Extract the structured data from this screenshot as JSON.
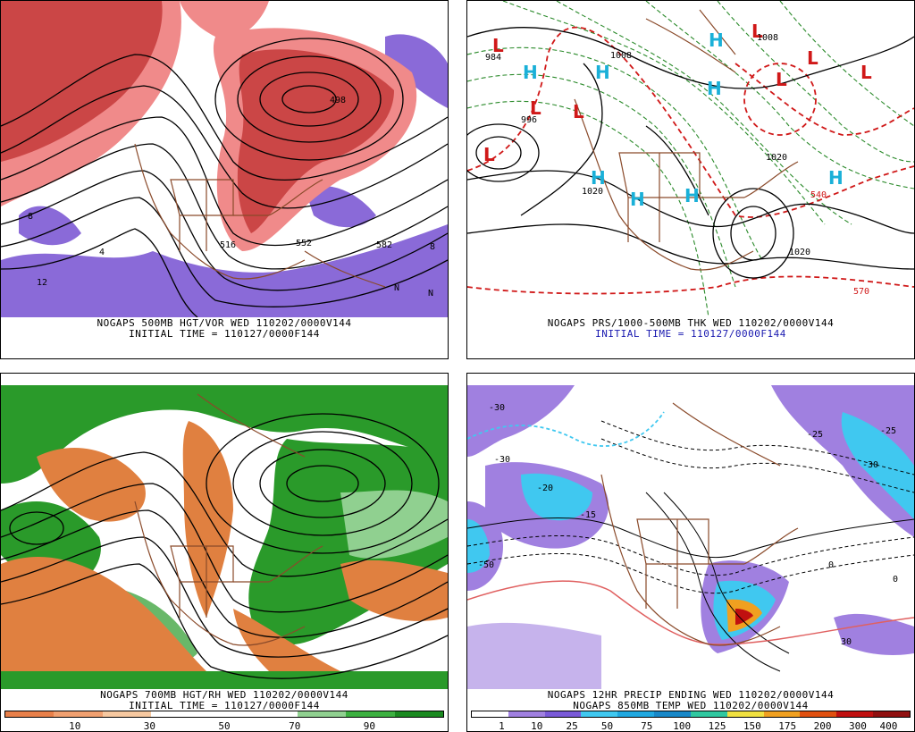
{
  "panels": {
    "top_left": {
      "title_line1": "NOGAPS 500MB HGT/VOR WED 110202/0000V144",
      "title_line2": "INITIAL TIME = 110127/0000F144",
      "contour_labels": [
        "498",
        "516",
        "552",
        "582",
        "8",
        "4",
        "8",
        "12",
        "N",
        "N"
      ]
    },
    "top_right": {
      "title_line1": "NOGAPS PRS/1000-500MB THK WED 110202/0000V144",
      "title_line2": "INITIAL TIME = 110127/0000F144",
      "pressure_labels": [
        "1020",
        "1020",
        "1020",
        "1008",
        "996",
        "984",
        "1008",
        "540",
        "570"
      ],
      "low_label": "L",
      "high_label": "H"
    },
    "bottom_left": {
      "title_line1": "NOGAPS 700MB HGT/RH WED 110202/0000V144",
      "title_line2": "INITIAL TIME = 110127/0000F144",
      "colorbar": {
        "ticks": [
          "10",
          "30",
          "50",
          "70",
          "90"
        ],
        "colors": [
          "#e8804a",
          "#f0a070",
          "#f6c8a0",
          "#ffffff",
          "#ffffff",
          "#ffffff",
          "#90d090",
          "#3cb040",
          "#1a8a20"
        ]
      }
    },
    "bottom_right": {
      "title_line1": "NOGAPS 12HR PRECIP ENDING WED 110202/0000V144",
      "title_line2": "NOGAPS 850MB TEMP WED 110202/0000V144",
      "colorbar": {
        "ticks": [
          "1",
          "10",
          "25",
          "50",
          "75",
          "100",
          "125",
          "150",
          "175",
          "200",
          "300",
          "400"
        ],
        "colors": [
          "#ffffff",
          "#a080e0",
          "#7a5ad8",
          "#40c8f0",
          "#20a8e0",
          "#1888c8",
          "#30c8a0",
          "#f0e040",
          "#f0a020",
          "#e05010",
          "#c01010",
          "#901010"
        ]
      },
      "temp_labels": [
        "0",
        "-30",
        "-15",
        "-20",
        "-50",
        "-30",
        "-25",
        "0",
        "30",
        "-30",
        "-25"
      ]
    }
  },
  "colors": {
    "vorticity_pos": "#c43a3a",
    "vorticity_light": "#f08a8a",
    "vorticity_neg": "#8a6ad8",
    "coast": "#8a4a2a",
    "rh_moist": "#2a9a2a",
    "rh_dry": "#e08040",
    "thickness": "#d01818",
    "thickness_cold": "#2a8a2a",
    "high_blue": "#1ab0d8",
    "low_red": "#d01818"
  }
}
